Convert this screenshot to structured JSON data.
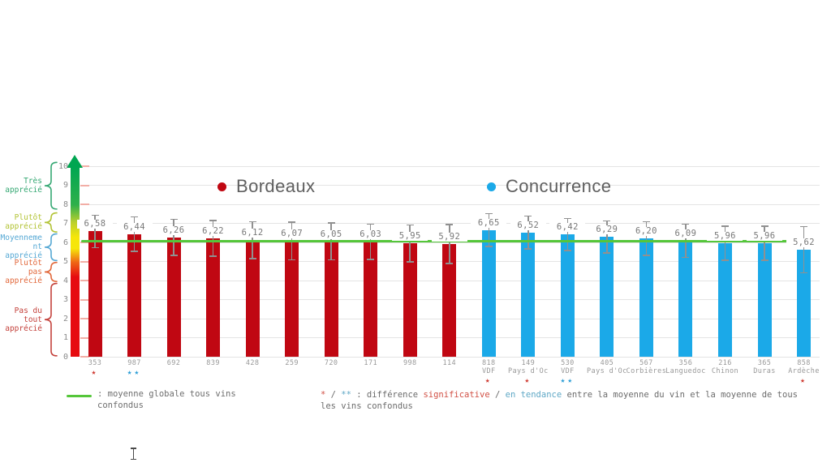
{
  "legend": {
    "items": [
      {
        "label": "Bordeaux",
        "color": "#c00712"
      },
      {
        "label": "Concurrence",
        "color": "#1ba9e8"
      }
    ]
  },
  "y_axis": {
    "min": 0,
    "max": 10,
    "ticks": [
      0,
      1,
      2,
      3,
      4,
      5,
      6,
      7,
      8,
      9,
      10
    ],
    "gradient_stops": [
      {
        "pos": 0,
        "color": "#e60b10"
      },
      {
        "pos": 42,
        "color": "#e60b10"
      },
      {
        "pos": 50,
        "color": "#ef6a15"
      },
      {
        "pos": 57,
        "color": "#f6e60a"
      },
      {
        "pos": 63,
        "color": "#f6e60a"
      },
      {
        "pos": 71,
        "color": "#b9cf2e"
      },
      {
        "pos": 80,
        "color": "#2fb04b"
      },
      {
        "pos": 100,
        "color": "#00a651"
      }
    ],
    "stub_color": "#f2aea6"
  },
  "scale_bands": [
    {
      "name": "tres-apprecie",
      "lines": [
        "Très",
        "apprécié"
      ],
      "from": 7.75,
      "to": 10.2,
      "color": "#35a873"
    },
    {
      "name": "plutot-apprecie",
      "lines": [
        "Plutôt",
        "apprécié"
      ],
      "from": 6.55,
      "to": 7.55,
      "color": "#b2c334"
    },
    {
      "name": "moyennement-apprecie",
      "lines": [
        "Moyenneme",
        "nt",
        "apprécié"
      ],
      "from": 5.05,
      "to": 6.45,
      "color": "#55a8d4"
    },
    {
      "name": "plutot-pas-apprecie",
      "lines": [
        "Plutôt",
        "pas",
        "apprécié"
      ],
      "from": 3.95,
      "to": 4.95,
      "color": "#e2683b"
    },
    {
      "name": "pas-du-tout-apprecie",
      "lines": [
        "Pas du",
        "tout",
        "apprécié"
      ],
      "from": 0.05,
      "to": 3.85,
      "color": "#c4423c"
    }
  ],
  "chart_data": {
    "type": "bar",
    "title": "",
    "xlabel": "",
    "ylabel": "",
    "ylim": [
      0,
      10
    ],
    "grid": true,
    "legend_position": "top",
    "colors": {
      "Bordeaux": "#c00712",
      "Concurrence": "#1ba9e8"
    },
    "mean_line": {
      "value": 6.08,
      "color": "#55c63a"
    },
    "bars": [
      {
        "group": "Bordeaux",
        "value": 6.58,
        "label": "6,58",
        "err": 0.88,
        "code": "353",
        "appellation": "",
        "stars": 1,
        "star_type": "significative"
      },
      {
        "group": "Bordeaux",
        "value": 6.44,
        "label": "6,44",
        "err": 0.93,
        "code": "987",
        "appellation": "",
        "stars": 2,
        "star_type": "tendance"
      },
      {
        "group": "Bordeaux",
        "value": 6.26,
        "label": "6,26",
        "err": 0.98,
        "code": "692",
        "appellation": "",
        "stars": 0,
        "star_type": ""
      },
      {
        "group": "Bordeaux",
        "value": 6.22,
        "label": "6,22",
        "err": 0.97,
        "code": "839",
        "appellation": "",
        "stars": 0,
        "star_type": ""
      },
      {
        "group": "Bordeaux",
        "value": 6.12,
        "label": "6,12",
        "err": 1.0,
        "code": "428",
        "appellation": "",
        "stars": 0,
        "star_type": ""
      },
      {
        "group": "Bordeaux",
        "value": 6.07,
        "label": "6,07",
        "err": 1.02,
        "code": "259",
        "appellation": "",
        "stars": 0,
        "star_type": ""
      },
      {
        "group": "Bordeaux",
        "value": 6.05,
        "label": "6,05",
        "err": 1.0,
        "code": "720",
        "appellation": "",
        "stars": 0,
        "star_type": ""
      },
      {
        "group": "Bordeaux",
        "value": 6.03,
        "label": "6,03",
        "err": 0.95,
        "code": "171",
        "appellation": "",
        "stars": 0,
        "star_type": ""
      },
      {
        "group": "Bordeaux",
        "value": 5.95,
        "label": "5,95",
        "err": 1.0,
        "code": "998",
        "appellation": "",
        "stars": 0,
        "star_type": ""
      },
      {
        "group": "Bordeaux",
        "value": 5.92,
        "label": "5,92",
        "err": 1.05,
        "code": "114",
        "appellation": "",
        "stars": 0,
        "star_type": ""
      },
      {
        "group": "Concurrence",
        "value": 6.65,
        "label": "6,65",
        "err": 0.9,
        "code": "818",
        "appellation": "VDF",
        "stars": 1,
        "star_type": "significative"
      },
      {
        "group": "Concurrence",
        "value": 6.52,
        "label": "6,52",
        "err": 0.9,
        "code": "149",
        "appellation": "Pays d'Oc",
        "stars": 1,
        "star_type": "significative"
      },
      {
        "group": "Concurrence",
        "value": 6.42,
        "label": "6,42",
        "err": 0.87,
        "code": "530",
        "appellation": "VDF",
        "stars": 2,
        "star_type": "tendance"
      },
      {
        "group": "Concurrence",
        "value": 6.29,
        "label": "6,29",
        "err": 0.87,
        "code": "405",
        "appellation": "Pays d'Oc",
        "stars": 0,
        "star_type": ""
      },
      {
        "group": "Concurrence",
        "value": 6.2,
        "label": "6,20",
        "err": 0.91,
        "code": "567",
        "appellation": "Corbières",
        "stars": 0,
        "star_type": ""
      },
      {
        "group": "Concurrence",
        "value": 6.09,
        "label": "6,09",
        "err": 0.9,
        "code": "356",
        "appellation": "Languedoc",
        "stars": 0,
        "star_type": ""
      },
      {
        "group": "Concurrence",
        "value": 5.96,
        "label": "5,96",
        "err": 0.93,
        "code": "216",
        "appellation": "Chinon",
        "stars": 0,
        "star_type": ""
      },
      {
        "group": "Concurrence",
        "value": 5.96,
        "label": "5,96",
        "err": 0.93,
        "code": "365",
        "appellation": "Duras",
        "stars": 0,
        "star_type": ""
      },
      {
        "group": "Concurrence",
        "value": 5.62,
        "label": "5,62",
        "err": 1.25,
        "code": "858",
        "appellation": "Ardèche",
        "stars": 1,
        "star_type": "significative"
      }
    ]
  },
  "star_colors": {
    "significative": "#cf3a31",
    "tendance": "#2d9ed6"
  },
  "footnotes": {
    "mean_line": {
      "lines": [
        ": moyenne globale tous vins",
        "confondus"
      ]
    },
    "stars": {
      "lines": [
        [
          {
            "text": "*",
            "color": "#d14f44"
          },
          {
            "text": " / ",
            "color": "#6b6b6b"
          },
          {
            "text": "**",
            "color": "#5fa8c6"
          },
          {
            "text": " : différence ",
            "color": "#6b6b6b"
          },
          {
            "text": "significative",
            "color": "#d14f44"
          },
          {
            "text": " / ",
            "color": "#6b6b6b"
          },
          {
            "text": "en tendance",
            "color": "#5fa8c6"
          },
          {
            "text": " entre la moyenne du vin et la moyenne de tous",
            "color": "#6b6b6b"
          }
        ],
        [
          {
            "text": "les vins confondus",
            "color": "#6b6b6b"
          }
        ]
      ]
    }
  }
}
